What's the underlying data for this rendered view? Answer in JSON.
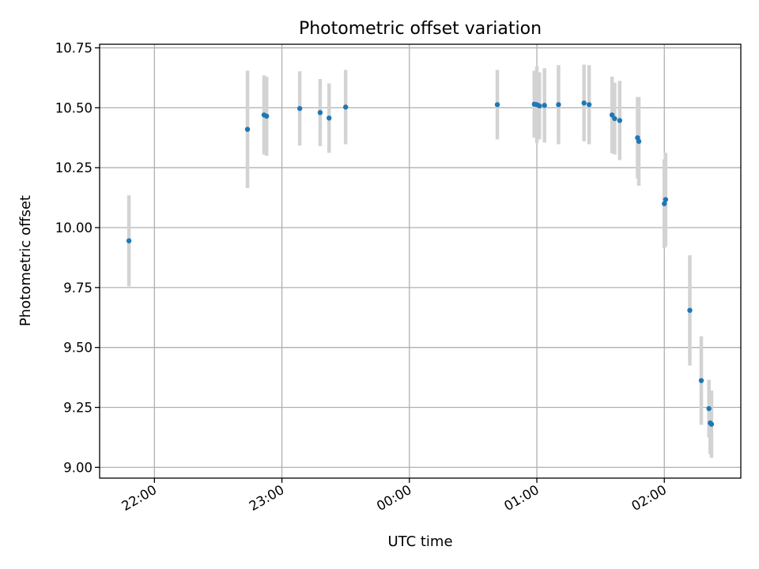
{
  "chart_data": {
    "type": "scatter",
    "title": "Photometric offset variation",
    "xlabel": "UTC time",
    "ylabel": "Photometric offset",
    "x_ticks": [
      "22:00",
      "23:00",
      "00:00",
      "01:00",
      "02:00"
    ],
    "x_tick_hours": [
      22,
      23,
      24,
      25,
      26
    ],
    "xlim_hours": [
      21.57,
      26.6
    ],
    "y_ticks": [
      "9.00",
      "9.25",
      "9.50",
      "9.75",
      "10.00",
      "10.25",
      "10.50",
      "10.75"
    ],
    "y_tick_values": [
      9.0,
      9.25,
      9.5,
      9.75,
      10.0,
      10.25,
      10.5,
      10.75
    ],
    "ylim": [
      8.955,
      10.765
    ],
    "grid": true,
    "point_color": "#1f77b4",
    "errorbar_color": "#d3d3d3",
    "points": [
      {
        "t": 21.8,
        "y": 9.945,
        "err": 0.19
      },
      {
        "t": 22.73,
        "y": 10.41,
        "err": 0.245
      },
      {
        "t": 22.86,
        "y": 10.47,
        "err": 0.165
      },
      {
        "t": 22.88,
        "y": 10.465,
        "err": 0.165
      },
      {
        "t": 23.14,
        "y": 10.497,
        "err": 0.155
      },
      {
        "t": 23.3,
        "y": 10.48,
        "err": 0.14
      },
      {
        "t": 23.37,
        "y": 10.457,
        "err": 0.145
      },
      {
        "t": 23.5,
        "y": 10.503,
        "err": 0.155
      },
      {
        "t": 24.69,
        "y": 10.513,
        "err": 0.145
      },
      {
        "t": 24.98,
        "y": 10.515,
        "err": 0.14
      },
      {
        "t": 25.0,
        "y": 10.513,
        "err": 0.16
      },
      {
        "t": 25.02,
        "y": 10.508,
        "err": 0.14
      },
      {
        "t": 25.06,
        "y": 10.51,
        "err": 0.155
      },
      {
        "t": 25.17,
        "y": 10.513,
        "err": 0.165
      },
      {
        "t": 25.37,
        "y": 10.52,
        "err": 0.16
      },
      {
        "t": 25.41,
        "y": 10.513,
        "err": 0.165
      },
      {
        "t": 25.59,
        "y": 10.47,
        "err": 0.16
      },
      {
        "t": 25.61,
        "y": 10.455,
        "err": 0.15
      },
      {
        "t": 25.65,
        "y": 10.447,
        "err": 0.165
      },
      {
        "t": 25.79,
        "y": 10.375,
        "err": 0.17
      },
      {
        "t": 25.8,
        "y": 10.36,
        "err": 0.185
      },
      {
        "t": 26.0,
        "y": 10.1,
        "err": 0.185
      },
      {
        "t": 26.01,
        "y": 10.117,
        "err": 0.195
      },
      {
        "t": 26.2,
        "y": 9.655,
        "err": 0.23
      },
      {
        "t": 26.29,
        "y": 9.362,
        "err": 0.185
      },
      {
        "t": 26.35,
        "y": 9.245,
        "err": 0.12
      },
      {
        "t": 26.36,
        "y": 9.185,
        "err": 0.13
      },
      {
        "t": 26.37,
        "y": 9.18,
        "err": 0.14
      }
    ]
  }
}
